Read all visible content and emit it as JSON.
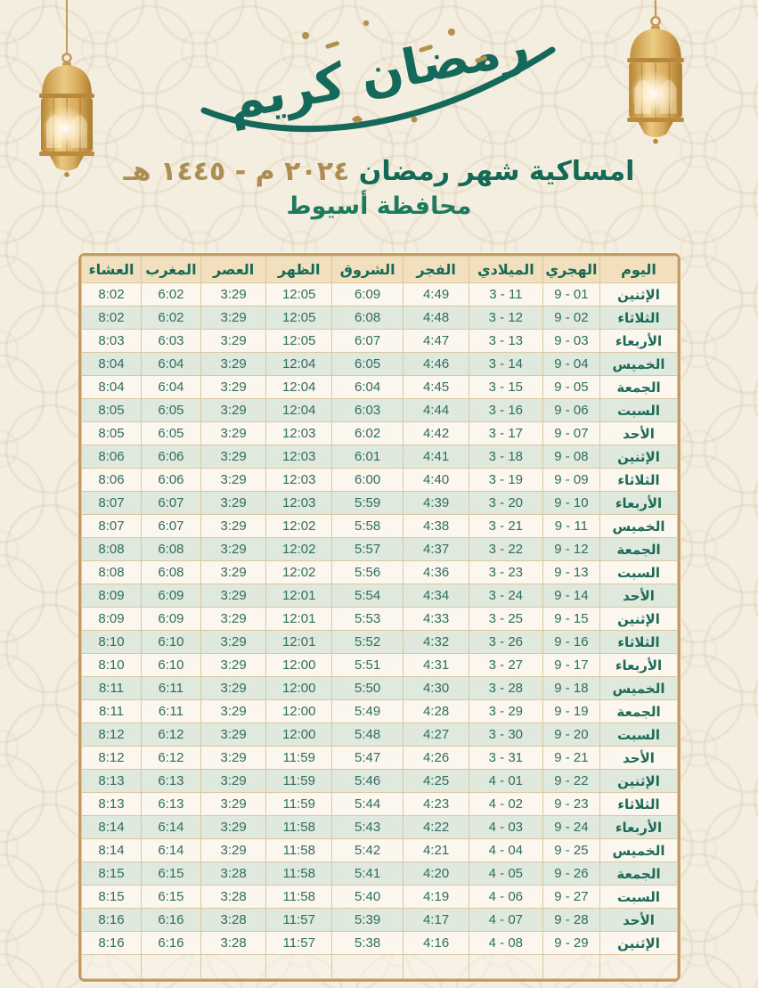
{
  "header": {
    "calligraphy_text": "رمضان كريم",
    "title_green": "امساكية شهر رمضان",
    "title_gold": "٢٠٢٤ م  -  ١٤٤٥ هـ",
    "subtitle": "محافظة أسيوط"
  },
  "icons": {
    "left": "hanging-lantern-icon",
    "right": "hanging-lantern-icon"
  },
  "colors": {
    "green": "#156a55",
    "gold": "#ad8d52",
    "table_border": "#c49c62",
    "cell_border": "#d9c7a0",
    "header_bg": "#f1dfbe",
    "row_cream": "#fcf8ef",
    "row_sage": "#dee8dd",
    "lantern_gold": "#d9ab5e",
    "page_bg": "#f4eee1"
  },
  "table": {
    "columns": [
      {
        "key": "day",
        "label": "اليوم",
        "type": "text",
        "width": "13%"
      },
      {
        "key": "hijri",
        "label": "الهجري",
        "type": "num",
        "width": "9.6%"
      },
      {
        "key": "miladi",
        "label": "الميلادي",
        "type": "num",
        "width": "12.4%"
      },
      {
        "key": "fajr",
        "label": "الفجر",
        "type": "num",
        "width": "11%"
      },
      {
        "key": "sunrise",
        "label": "الشروق",
        "type": "num",
        "width": "12%"
      },
      {
        "key": "dhuhr",
        "label": "الظهر",
        "type": "num",
        "width": "11%"
      },
      {
        "key": "asr",
        "label": "العصر",
        "type": "num",
        "width": "11%"
      },
      {
        "key": "maghrib",
        "label": "المغرب",
        "type": "num",
        "width": "10%"
      },
      {
        "key": "isha",
        "label": "العشاء",
        "type": "num",
        "width": "10%"
      }
    ],
    "rows": [
      [
        "الإثنين",
        "9 - 01",
        "3 - 11",
        "4:49",
        "6:09",
        "12:05",
        "3:29",
        "6:02",
        "8:02"
      ],
      [
        "الثلاثاء",
        "9 - 02",
        "3 - 12",
        "4:48",
        "6:08",
        "12:05",
        "3:29",
        "6:02",
        "8:02"
      ],
      [
        "الأربعاء",
        "9 - 03",
        "3 - 13",
        "4:47",
        "6:07",
        "12:05",
        "3:29",
        "6:03",
        "8:03"
      ],
      [
        "الخميس",
        "9 - 04",
        "3 - 14",
        "4:46",
        "6:05",
        "12:04",
        "3:29",
        "6:04",
        "8:04"
      ],
      [
        "الجمعة",
        "9 - 05",
        "3 - 15",
        "4:45",
        "6:04",
        "12:04",
        "3:29",
        "6:04",
        "8:04"
      ],
      [
        "السبت",
        "9 - 06",
        "3 - 16",
        "4:44",
        "6:03",
        "12:04",
        "3:29",
        "6:05",
        "8:05"
      ],
      [
        "الأحد",
        "9 - 07",
        "3 - 17",
        "4:42",
        "6:02",
        "12:03",
        "3:29",
        "6:05",
        "8:05"
      ],
      [
        "الإثنين",
        "9 - 08",
        "3 - 18",
        "4:41",
        "6:01",
        "12:03",
        "3:29",
        "6:06",
        "8:06"
      ],
      [
        "الثلاثاء",
        "9 - 09",
        "3 - 19",
        "4:40",
        "6:00",
        "12:03",
        "3:29",
        "6:06",
        "8:06"
      ],
      [
        "الأربعاء",
        "9 - 10",
        "3 - 20",
        "4:39",
        "5:59",
        "12:03",
        "3:29",
        "6:07",
        "8:07"
      ],
      [
        "الخميس",
        "9 - 11",
        "3 - 21",
        "4:38",
        "5:58",
        "12:02",
        "3:29",
        "6:07",
        "8:07"
      ],
      [
        "الجمعة",
        "9 - 12",
        "3 - 22",
        "4:37",
        "5:57",
        "12:02",
        "3:29",
        "6:08",
        "8:08"
      ],
      [
        "السبت",
        "9 - 13",
        "3 - 23",
        "4:36",
        "5:56",
        "12:02",
        "3:29",
        "6:08",
        "8:08"
      ],
      [
        "الأحد",
        "9 - 14",
        "3 - 24",
        "4:34",
        "5:54",
        "12:01",
        "3:29",
        "6:09",
        "8:09"
      ],
      [
        "الإثنين",
        "9 - 15",
        "3 - 25",
        "4:33",
        "5:53",
        "12:01",
        "3:29",
        "6:09",
        "8:09"
      ],
      [
        "الثلاثاء",
        "9 - 16",
        "3 - 26",
        "4:32",
        "5:52",
        "12:01",
        "3:29",
        "6:10",
        "8:10"
      ],
      [
        "الأربعاء",
        "9 - 17",
        "3 - 27",
        "4:31",
        "5:51",
        "12:00",
        "3:29",
        "6:10",
        "8:10"
      ],
      [
        "الخميس",
        "9 - 18",
        "3 - 28",
        "4:30",
        "5:50",
        "12:00",
        "3:29",
        "6:11",
        "8:11"
      ],
      [
        "الجمعة",
        "9 - 19",
        "3 - 29",
        "4:28",
        "5:49",
        "12:00",
        "3:29",
        "6:11",
        "8:11"
      ],
      [
        "السبت",
        "9 - 20",
        "3 - 30",
        "4:27",
        "5:48",
        "12:00",
        "3:29",
        "6:12",
        "8:12"
      ],
      [
        "الأحد",
        "9 - 21",
        "3 - 31",
        "4:26",
        "5:47",
        "11:59",
        "3:29",
        "6:12",
        "8:12"
      ],
      [
        "الإثنين",
        "9 - 22",
        "4 - 01",
        "4:25",
        "5:46",
        "11:59",
        "3:29",
        "6:13",
        "8:13"
      ],
      [
        "الثلاثاء",
        "9 - 23",
        "4 - 02",
        "4:23",
        "5:44",
        "11:59",
        "3:29",
        "6:13",
        "8:13"
      ],
      [
        "الأربعاء",
        "9 - 24",
        "4 - 03",
        "4:22",
        "5:43",
        "11:58",
        "3:29",
        "6:14",
        "8:14"
      ],
      [
        "الخميس",
        "9 - 25",
        "4 - 04",
        "4:21",
        "5:42",
        "11:58",
        "3:29",
        "6:14",
        "8:14"
      ],
      [
        "الجمعة",
        "9 - 26",
        "4 - 05",
        "4:20",
        "5:41",
        "11:58",
        "3:28",
        "6:15",
        "8:15"
      ],
      [
        "السبت",
        "9 - 27",
        "4 - 06",
        "4:19",
        "5:40",
        "11:58",
        "3:28",
        "6:15",
        "8:15"
      ],
      [
        "الأحد",
        "9 - 28",
        "4 - 07",
        "4:17",
        "5:39",
        "11:57",
        "3:28",
        "6:16",
        "8:16"
      ],
      [
        "الإثنين",
        "9 - 29",
        "4 - 08",
        "4:16",
        "5:38",
        "11:57",
        "3:28",
        "6:16",
        "8:16"
      ]
    ],
    "trailing_empty_rows": 1
  }
}
